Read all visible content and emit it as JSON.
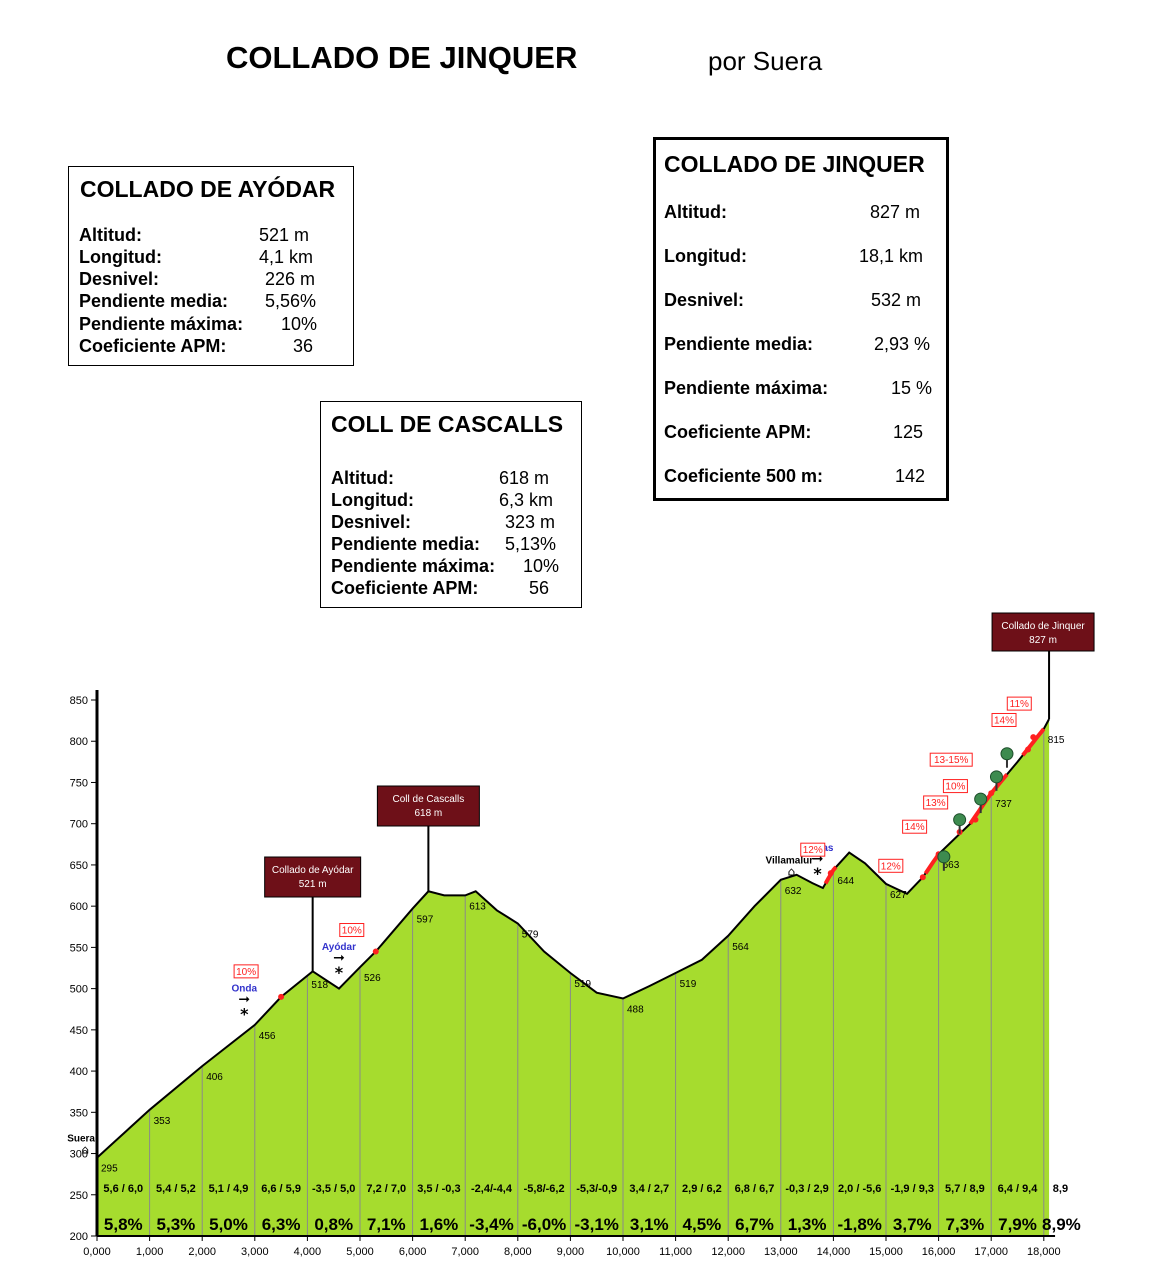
{
  "title": "COLLADO DE JINQUER",
  "subtitle": "por Suera",
  "boxes": {
    "ayodar": {
      "heading": "COLLADO DE AYÓDAR",
      "rows": [
        {
          "label": "Altitud:",
          "value": "521 m"
        },
        {
          "label": "Longitud:",
          "value": "4,1 km"
        },
        {
          "label": "Desnivel:",
          "value": "226 m"
        },
        {
          "label": "Pendiente media:",
          "value": "5,56%"
        },
        {
          "label": "Pendiente máxima:",
          "value": "10%"
        },
        {
          "label": "Coeficiente APM:",
          "value": "36"
        }
      ]
    },
    "cascalls": {
      "heading": "COLL DE CASCALLS",
      "rows": [
        {
          "label": "Altitud:",
          "value": "618 m"
        },
        {
          "label": "Longitud:",
          "value": "6,3 km"
        },
        {
          "label": "Desnivel:",
          "value": "323 m"
        },
        {
          "label": "Pendiente media:",
          "value": "5,13%"
        },
        {
          "label": "Pendiente máxima:",
          "value": "10%"
        },
        {
          "label": "Coeficiente APM:",
          "value": "56"
        }
      ]
    },
    "jinquer": {
      "heading": "COLLADO DE JINQUER",
      "rows": [
        {
          "label": "Altitud:",
          "value": "827 m"
        },
        {
          "label": "Longitud:",
          "value": "18,1 km"
        },
        {
          "label": "Desnivel:",
          "value": "532 m"
        },
        {
          "label": "Pendiente media:",
          "value": "2,93 %"
        },
        {
          "label": "Pendiente máxima:",
          "value": "15 %"
        },
        {
          "label": "Coeficiente APM:",
          "value": "125"
        },
        {
          "label": "Coeficiente 500 m:",
          "value": "142"
        }
      ]
    }
  },
  "chart_data": {
    "type": "area",
    "xlim": [
      0,
      18.1
    ],
    "ylim": [
      200,
      850
    ],
    "x_ticks": [
      "0,000",
      "1,000",
      "2,000",
      "3,000",
      "4,000",
      "5,000",
      "6,000",
      "7,000",
      "8,000",
      "9,000",
      "10,000",
      "11,000",
      "12,000",
      "13,000",
      "14,000",
      "15,000",
      "16,000",
      "17,000",
      "18,000"
    ],
    "y_ticks": [
      200,
      250,
      300,
      350,
      400,
      450,
      500,
      550,
      600,
      650,
      700,
      750,
      800,
      850
    ],
    "colors": {
      "fill": "#a6dc2e",
      "line": "#000000",
      "peak_box": "#6e1018",
      "steep": "#ff2020",
      "grid": "#8a8a8a",
      "place_blue": "#3333cc"
    },
    "profile": [
      {
        "x": 0,
        "y": 295
      },
      {
        "x": 1,
        "y": 353
      },
      {
        "x": 2,
        "y": 406
      },
      {
        "x": 3,
        "y": 456
      },
      {
        "x": 3.5,
        "y": 490
      },
      {
        "x": 4.1,
        "y": 521
      },
      {
        "x": 4.6,
        "y": 500
      },
      {
        "x": 5,
        "y": 526
      },
      {
        "x": 5.3,
        "y": 545
      },
      {
        "x": 6,
        "y": 597
      },
      {
        "x": 6.3,
        "y": 618
      },
      {
        "x": 6.6,
        "y": 613
      },
      {
        "x": 7,
        "y": 613
      },
      {
        "x": 7.2,
        "y": 618
      },
      {
        "x": 7.6,
        "y": 595
      },
      {
        "x": 8,
        "y": 579
      },
      {
        "x": 8.5,
        "y": 545
      },
      {
        "x": 9,
        "y": 519
      },
      {
        "x": 9.5,
        "y": 495
      },
      {
        "x": 10,
        "y": 488
      },
      {
        "x": 10.5,
        "y": 503
      },
      {
        "x": 11,
        "y": 519
      },
      {
        "x": 11.5,
        "y": 535
      },
      {
        "x": 12,
        "y": 564
      },
      {
        "x": 12.5,
        "y": 600
      },
      {
        "x": 13,
        "y": 632
      },
      {
        "x": 13.3,
        "y": 638
      },
      {
        "x": 13.6,
        "y": 628
      },
      {
        "x": 13.8,
        "y": 622
      },
      {
        "x": 14,
        "y": 644
      },
      {
        "x": 14.3,
        "y": 665
      },
      {
        "x": 14.6,
        "y": 652
      },
      {
        "x": 15,
        "y": 627
      },
      {
        "x": 15.4,
        "y": 615
      },
      {
        "x": 15.7,
        "y": 635
      },
      {
        "x": 16,
        "y": 663
      },
      {
        "x": 16.6,
        "y": 700
      },
      {
        "x": 17,
        "y": 737
      },
      {
        "x": 17.5,
        "y": 775
      },
      {
        "x": 18,
        "y": 815
      },
      {
        "x": 18.1,
        "y": 827
      }
    ],
    "point_labels": [
      {
        "x": 0,
        "y": 295,
        "label": "295"
      },
      {
        "x": 1,
        "y": 353,
        "label": "353"
      },
      {
        "x": 2,
        "y": 406,
        "label": "406"
      },
      {
        "x": 3,
        "y": 456,
        "label": "456"
      },
      {
        "x": 4,
        "y": 518,
        "label": "518"
      },
      {
        "x": 5,
        "y": 526,
        "label": "526"
      },
      {
        "x": 6,
        "y": 597,
        "label": "597"
      },
      {
        "x": 7,
        "y": 613,
        "label": "613"
      },
      {
        "x": 8,
        "y": 579,
        "label": "579"
      },
      {
        "x": 9,
        "y": 519,
        "label": "519"
      },
      {
        "x": 10,
        "y": 488,
        "label": "488"
      },
      {
        "x": 11,
        "y": 519,
        "label": "519"
      },
      {
        "x": 12,
        "y": 564,
        "label": "564"
      },
      {
        "x": 13,
        "y": 632,
        "label": "632"
      },
      {
        "x": 14,
        "y": 644,
        "label": "644"
      },
      {
        "x": 15,
        "y": 627,
        "label": "627"
      },
      {
        "x": 16,
        "y": 663,
        "label": "663"
      },
      {
        "x": 17,
        "y": 737,
        "label": "737"
      },
      {
        "x": 18,
        "y": 815,
        "label": "815"
      }
    ],
    "peaks": [
      {
        "x": 4.1,
        "y": 521,
        "name": "Collado de Ayódar",
        "alt": "521 m"
      },
      {
        "x": 6.3,
        "y": 618,
        "name": "Coll de Cascalls",
        "alt": "618 m"
      },
      {
        "x": 18.1,
        "y": 827,
        "name": "Collado de Jinquer",
        "alt": "827 m"
      }
    ],
    "places": [
      {
        "x": 0,
        "y": 305,
        "name": "Suera"
      },
      {
        "x": 13.2,
        "y": 642,
        "name": "Villamalur"
      }
    ],
    "junctions": [
      {
        "x": 2.8,
        "y": 470,
        "name": "Onda"
      },
      {
        "x": 4.6,
        "y": 520,
        "name": "Ayódar"
      },
      {
        "x": 13.7,
        "y": 640,
        "name": "Pavías"
      }
    ],
    "steep_labels": [
      {
        "x": 3.5,
        "y": 490,
        "label": "10%"
      },
      {
        "x": 5.3,
        "y": 545,
        "label": "10%"
      },
      {
        "x": 13.95,
        "y": 640,
        "label": "12%"
      },
      {
        "x": 15.7,
        "y": 635,
        "label": "12%"
      },
      {
        "x": 16.0,
        "y": 663,
        "label": "14%"
      },
      {
        "x": 16.4,
        "y": 690,
        "label": "13%"
      },
      {
        "x": 16.7,
        "y": 705,
        "label": "10%"
      },
      {
        "x": 17.0,
        "y": 737,
        "label": "13-15%"
      },
      {
        "x": 17.7,
        "y": 790,
        "label": "14%"
      },
      {
        "x": 17.8,
        "y": 805,
        "label": "11%"
      }
    ],
    "km_gradients": [
      "5,6 / 6,0",
      "5,4 / 5,2",
      "5,1 / 4,9",
      "6,6 / 5,9",
      "-3,5 / 5,0",
      "7,2 / 7,0",
      "3,5 / -0,3",
      "-2,4/-4,4",
      "-5,8/-6,2",
      "-5,3/-0,9",
      "3,4 / 2,7",
      "2,9 / 6,2",
      "6,8 / 6,7",
      "-0,3 / 2,9",
      "2,0 / -5,6",
      "-1,9 / 9,3",
      "5,7 / 8,9",
      "6,4 / 9,4",
      "8,9"
    ],
    "km_averages": [
      "5,8%",
      "5,3%",
      "5,0%",
      "6,3%",
      "0,8%",
      "7,1%",
      "1,6%",
      "-3,4%",
      "-6,0%",
      "-3,1%",
      "3,1%",
      "4,5%",
      "6,7%",
      "1,3%",
      "-1,8%",
      "3,7%",
      "7,3%",
      "7,9%",
      "8,9%"
    ]
  }
}
